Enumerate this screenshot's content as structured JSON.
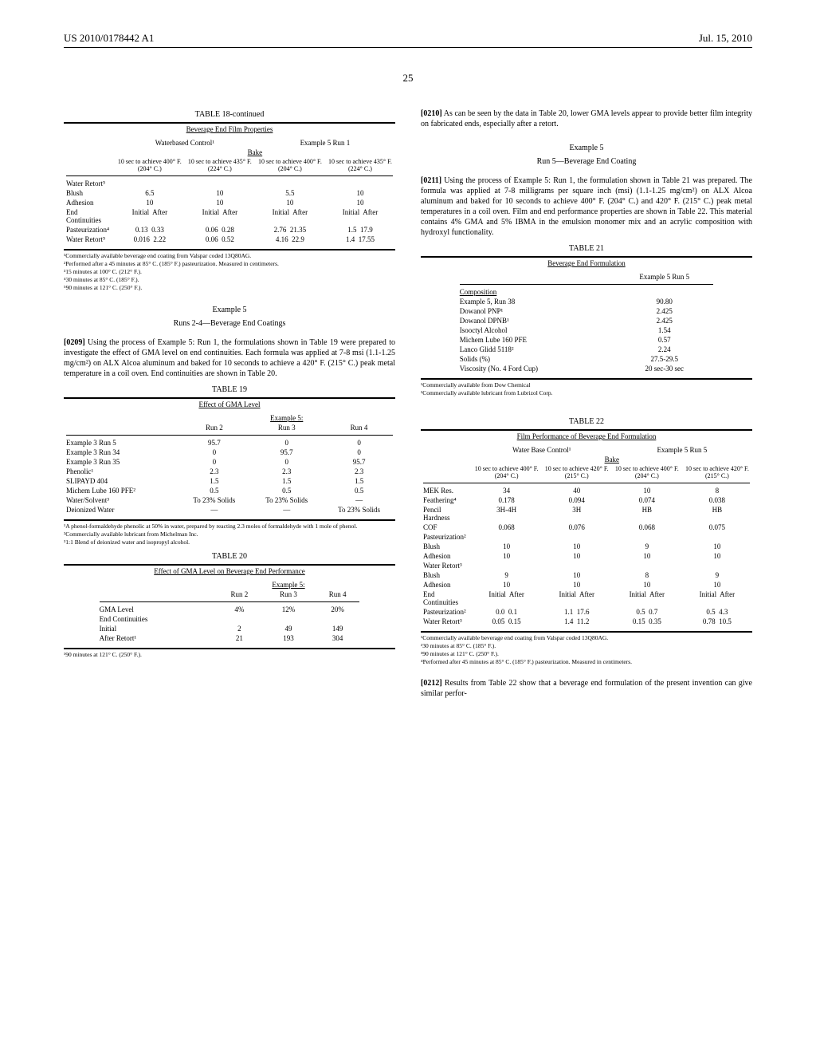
{
  "header": {
    "pubNum": "US 2010/0178442 A1",
    "date": "Jul. 15, 2010"
  },
  "pageNum": "25",
  "table18": {
    "title": "TABLE 18-continued",
    "subtitle": "Beverage End Film Properties",
    "groupHeader1": "Waterbased Control¹",
    "groupHeader2": "Example 5 Run 1",
    "subHeader": "Bake",
    "colHeaders": [
      "10 sec to achieve 400° F. (204° C.)",
      "10 sec to achieve 435° F. (224° C.)",
      "10 sec to achieve 400° F. (204° C.)",
      "10 sec to achieve 435° F. (224° C.)"
    ],
    "rows": [
      {
        "label": "Water Retort⁵",
        "vals": [
          "",
          "",
          "",
          ""
        ]
      },
      {
        "label": "Blush",
        "vals": [
          "6.5",
          "10",
          "5.5",
          "10"
        ]
      },
      {
        "label": "Adhesion",
        "vals": [
          "10",
          "10",
          "10",
          "10"
        ]
      },
      {
        "label": "End Continuities",
        "vals": [
          "Initial  After",
          "Initial  After",
          "Initial  After",
          "Initial  After"
        ]
      },
      {
        "label": "Pasteurization⁴",
        "vals": [
          "0.13  0.33",
          "0.06  0.28",
          "2.76  21.35",
          "1.5  17.9"
        ]
      },
      {
        "label": "Water Retort⁵",
        "vals": [
          "0.016  2.22",
          "0.06  0.52",
          "4.16  22.9",
          "1.4  17.55"
        ]
      }
    ],
    "footnotes": [
      "¹Commercially available beverage end coating from Valspar coded 13Q80AG.",
      "²Performed after a 45 minutes at 85° C. (185° F.) pasteurization. Measured in centimeters.",
      "³15 minutes at 100° C. (212° F.).",
      "⁴30 minutes at 85° C. (185° F.).",
      "⁵90 minutes at 121° C. (250° F.)."
    ]
  },
  "example5a": {
    "title": "Example 5",
    "subtitle": "Runs 2-4—Beverage End Coatings"
  },
  "para0209": {
    "num": "[0209]",
    "text": "   Using the process of Example 5: Run 1, the formulations shown in Table 19 were prepared to investigate the effect of GMA level on end continuities. Each formula was applied at 7-8 msi (1.1-1.25 mg/cm²) on ALX Alcoa aluminum and baked for 10 seconds to achieve a 420° F. (215° C.) peak metal temperature in a coil oven. End continuities are shown in Table 20."
  },
  "table19": {
    "title": "TABLE 19",
    "subtitle": "Effect of GMA Level",
    "groupHeader": "Example 5:",
    "colHeaders": [
      "Run 2",
      "Run 3",
      "Run 4"
    ],
    "rows": [
      {
        "label": "Example 3 Run 5",
        "vals": [
          "95.7",
          "0",
          "0"
        ]
      },
      {
        "label": "Example 3 Run 34",
        "vals": [
          "0",
          "95.7",
          "0"
        ]
      },
      {
        "label": "Example 3 Run 35",
        "vals": [
          "0",
          "0",
          "95.7"
        ]
      },
      {
        "label": "Phenolic¹",
        "vals": [
          "2.3",
          "2.3",
          "2.3"
        ]
      },
      {
        "label": "SLIPAYD 404",
        "vals": [
          "1.5",
          "1.5",
          "1.5"
        ]
      },
      {
        "label": "Michem Lube 160 PFE²",
        "vals": [
          "0.5",
          "0.5",
          "0.5"
        ]
      },
      {
        "label": "Water/Solvent³",
        "vals": [
          "To 23% Solids",
          "To 23% Solids",
          "—"
        ]
      },
      {
        "label": "Deionized Water",
        "vals": [
          "—",
          "—",
          "To 23% Solids"
        ]
      }
    ],
    "footnotes": [
      "¹A phenol-formaldehyde phenolic at 50% in water, prepared by reacting 2.3 moles of formaldehyde with 1 mole of phenol.",
      "²Commercially available lubricant from Michelman Inc.",
      "³1:1 Blend of deionized water and isopropyl alcohol."
    ]
  },
  "table20": {
    "title": "TABLE 20",
    "subtitle": "Effect of GMA Level on Beverage End Performance",
    "groupHeader": "Example 5:",
    "colHeaders": [
      "Run 2",
      "Run 3",
      "Run 4"
    ],
    "rows": [
      {
        "label": "GMA Level",
        "vals": [
          "4%",
          "12%",
          "20%"
        ]
      },
      {
        "label": "End Continuities",
        "vals": [
          "",
          "",
          ""
        ]
      },
      {
        "label": "Initial",
        "vals": [
          "2",
          "49",
          "149"
        ]
      },
      {
        "label": "After Retort¹",
        "vals": [
          "21",
          "193",
          "304"
        ]
      }
    ],
    "footnotes": [
      "¹90 minutes at 121° C. (250° F.)."
    ]
  },
  "para0210": {
    "num": "[0210]",
    "text": "   As can be seen by the data in Table 20, lower GMA levels appear to provide better film integrity on fabricated ends, especially after a retort."
  },
  "example5b": {
    "title": "Example 5",
    "subtitle": "Run 5—Beverage End Coating"
  },
  "para0211": {
    "num": "[0211]",
    "text": "   Using the process of Example 5: Run 1, the formulation shown in Table 21 was prepared. The formula was applied at 7-8 milligrams per square inch (msi) (1.1-1.25 mg/cm²) on ALX Alcoa aluminum and baked for 10 seconds to achieve 400° F. (204° C.) and 420° F. (215° C.) peak metal temperatures in a coil oven. Film and end performance properties are shown in Table 22. This material contains 4% GMA and 5% IBMA in the emulsion monomer mix and an acrylic composition with hydroxyl functionality."
  },
  "table21": {
    "title": "TABLE 21",
    "subtitle": "Beverage End Formulation",
    "colHeader": "Example 5 Run 5",
    "subLabel": "Composition",
    "rows": [
      {
        "label": "Example 5, Run 38",
        "val": "90.80"
      },
      {
        "label": "Dowanol PNP¹",
        "val": "2.425"
      },
      {
        "label": "Dowanol DPNB¹",
        "val": "2.425"
      },
      {
        "label": "Isooctyl Alcohol",
        "val": "1.54"
      },
      {
        "label": "Michem Lube 160 PFE",
        "val": "0.57"
      },
      {
        "label": "Lanco Glidd 5118²",
        "val": "2.24"
      },
      {
        "label": "Solids (%)",
        "val": "27.5-29.5"
      },
      {
        "label": "Viscosity (No. 4 Ford Cup)",
        "val": "20 sec-30 sec"
      }
    ],
    "footnotes": [
      "¹Commercially available from Dow Chemical",
      "²Commercially available lubricant from Lubrizol Corp."
    ]
  },
  "table22": {
    "title": "TABLE 22",
    "subtitle": "Film Performance of Beverage End Formulation",
    "groupHeader1": "Water Base Control¹",
    "groupHeader2": "Example 5 Run 5",
    "subHeader": "Bake",
    "colHeaders": [
      "10 sec to achieve 400° F. (204° C.)",
      "10 sec to achieve 420° F. (215° C.)",
      "10 sec to achieve 400° F. (204° C.)",
      "10 sec to achieve 420° F. (215° C.)"
    ],
    "rows": [
      {
        "label": "MEK Res.",
        "vals": [
          "34",
          "40",
          "10",
          "8"
        ]
      },
      {
        "label": "Feathering⁴",
        "vals": [
          "0.178",
          "0.094",
          "0.074",
          "0.038"
        ]
      },
      {
        "label": "Pencil Hardness",
        "vals": [
          "3H-4H",
          "3H",
          "HB",
          "HB"
        ]
      },
      {
        "label": "COF",
        "vals": [
          "0.068",
          "0.076",
          "0.068",
          "0.075"
        ]
      },
      {
        "label": "Pasteurization²",
        "vals": [
          "",
          "",
          "",
          ""
        ]
      },
      {
        "label": "Blush",
        "vals": [
          "10",
          "10",
          "9",
          "10"
        ]
      },
      {
        "label": "Adhesion",
        "vals": [
          "10",
          "10",
          "10",
          "10"
        ]
      },
      {
        "label": "Water Retort³",
        "vals": [
          "",
          "",
          "",
          ""
        ]
      },
      {
        "label": "Blush",
        "vals": [
          "9",
          "10",
          "8",
          "9"
        ]
      },
      {
        "label": "Adhesion",
        "vals": [
          "10",
          "10",
          "10",
          "10"
        ]
      },
      {
        "label": "End Continuities",
        "vals": [
          "Initial  After",
          "Initial  After",
          "Initial  After",
          "Initial  After"
        ]
      },
      {
        "label": "Pasteurization²",
        "vals": [
          "0.0  0.1",
          "1.1  17.6",
          "0.5  0.7",
          "0.5  4.3"
        ]
      },
      {
        "label": "Water Retort³",
        "vals": [
          "0.05  0.15",
          "1.4  11.2",
          "0.15  0.35",
          "0.78  10.5"
        ]
      }
    ],
    "footnotes": [
      "¹Commercially available beverage end coating from Valspar coded 13Q80AG.",
      "²30 minutes at 85° C. (185° F.).",
      "³90 minutes at 121° C. (250° F.).",
      "⁴Performed after 45 minutes at 85° C. (185° F.) pasteurization. Measured in centimeters."
    ]
  },
  "para0212": {
    "num": "[0212]",
    "text": "   Results from Table 22 show that a beverage end formulation of the present invention can give similar perfor-"
  }
}
